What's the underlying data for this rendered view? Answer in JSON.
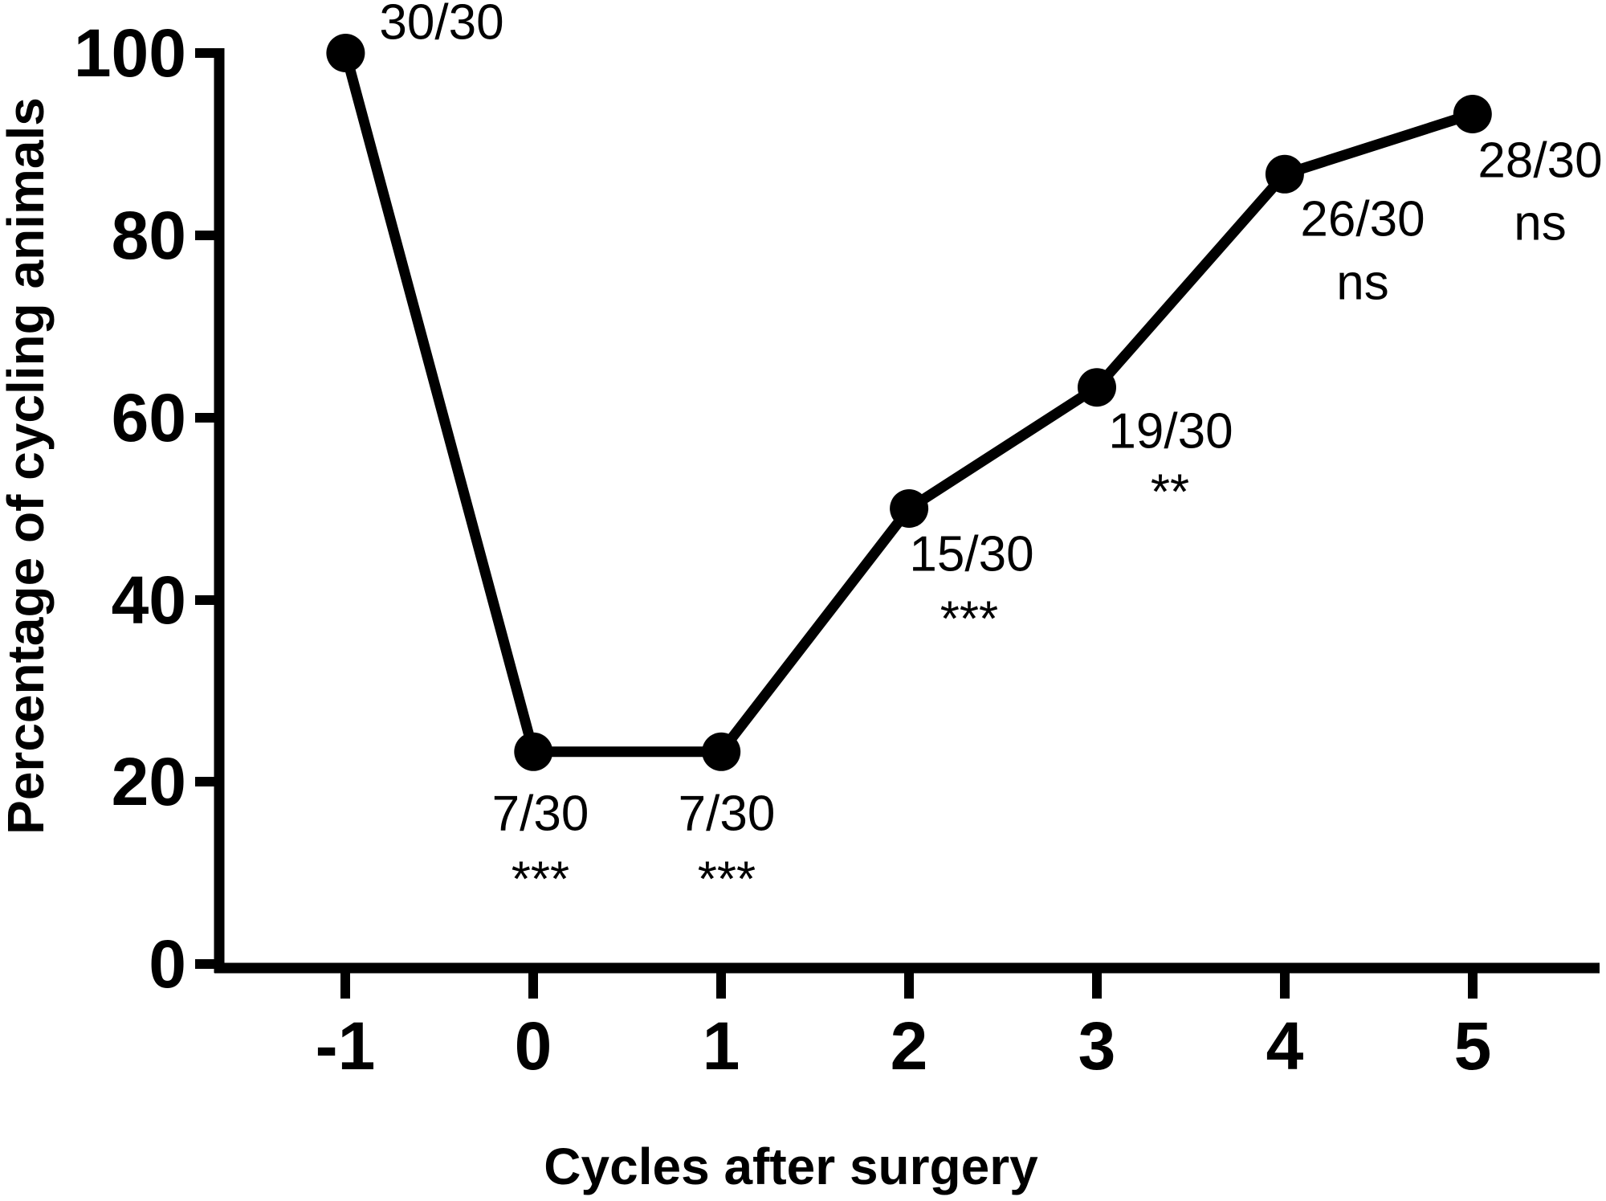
{
  "chart_data": {
    "type": "line",
    "x": [
      -1,
      0,
      1,
      2,
      3,
      4,
      5
    ],
    "values": [
      100,
      23.3,
      23.3,
      50,
      63.3,
      86.7,
      93.3
    ],
    "counts": [
      "30/30",
      "7/30",
      "7/30",
      "15/30",
      "19/30",
      "26/30",
      "28/30"
    ],
    "significance": [
      "",
      "***",
      "***",
      "***",
      "**",
      "ns",
      "ns"
    ],
    "title": "",
    "xlabel": "Cycles after surgery",
    "ylabel": "Percentage of cycling animals",
    "x_ticks": [
      "-1",
      "0",
      "1",
      "2",
      "3",
      "4",
      "5"
    ],
    "y_ticks": [
      "100",
      "80",
      "60",
      "40",
      "20",
      "0"
    ],
    "ylim": [
      0,
      100
    ],
    "grid": false,
    "legend": "none",
    "series_color": "#000000",
    "background_color": "#ffffff"
  }
}
